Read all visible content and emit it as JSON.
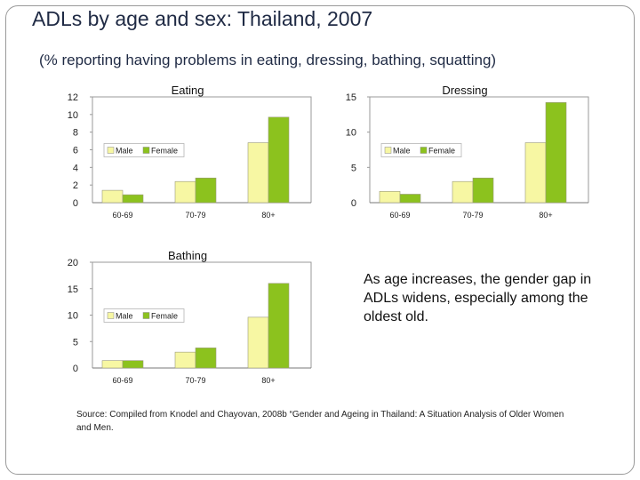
{
  "slide": {
    "title": "ADLs by age and sex: Thailand, 2007",
    "subtitle": "(% reporting having problems in eating, dressing, bathing, squatting)",
    "note": "As age increases, the gender gap in ADLs widens, especially among the oldest old.",
    "source": "Source: Compiled from Knodel and Chayovan, 2008b “Gender and Ageing in Thailand: A Situation Analysis of Older Women and Men."
  },
  "colors": {
    "male": "#f7f7a3",
    "female": "#8cc21e",
    "axis": "#9a9a9a",
    "text": "#1f2a44"
  },
  "chart_data": [
    {
      "type": "bar",
      "title": "Eating",
      "categories": [
        "60-69",
        "70-79",
        "80+"
      ],
      "series": [
        {
          "name": "Male",
          "values": [
            1.4,
            2.4,
            6.8
          ]
        },
        {
          "name": "Female",
          "values": [
            0.9,
            2.8,
            9.7
          ]
        }
      ],
      "ylim": [
        0,
        12
      ],
      "yticks": [
        0,
        2,
        4,
        6,
        8,
        10,
        12
      ],
      "legend": "left-middle"
    },
    {
      "type": "bar",
      "title": "Dressing",
      "categories": [
        "60-69",
        "70-79",
        "80+"
      ],
      "series": [
        {
          "name": "Male",
          "values": [
            1.6,
            3.0,
            8.5
          ]
        },
        {
          "name": "Female",
          "values": [
            1.2,
            3.5,
            14.2
          ]
        }
      ],
      "ylim": [
        0,
        15
      ],
      "yticks": [
        0,
        5,
        10,
        15
      ],
      "legend": "left-middle"
    },
    {
      "type": "bar",
      "title": "Bathing",
      "categories": [
        "60-69",
        "70-79",
        "80+"
      ],
      "series": [
        {
          "name": "Male",
          "values": [
            1.4,
            3.0,
            9.6
          ]
        },
        {
          "name": "Female",
          "values": [
            1.4,
            3.8,
            16.0
          ]
        }
      ],
      "ylim": [
        0,
        20
      ],
      "yticks": [
        0,
        5,
        10,
        15,
        20
      ],
      "legend": "left-middle"
    }
  ]
}
